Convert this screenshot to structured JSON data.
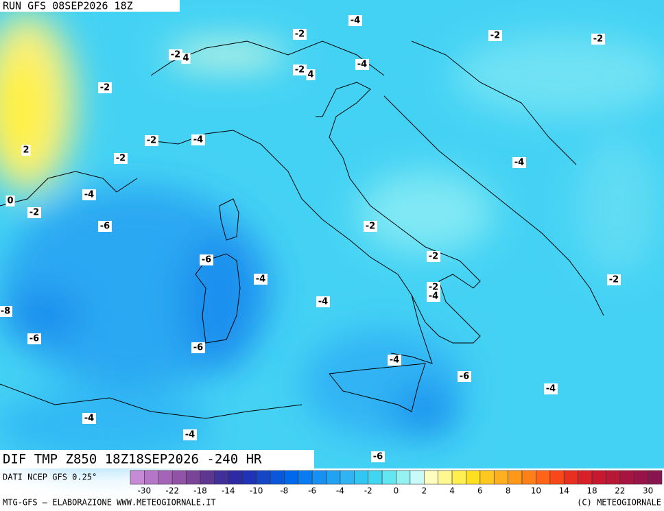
{
  "header": {
    "run": "RUN GFS 08SEP2026 18Z"
  },
  "contour_labels": [
    "-4",
    "-2",
    "-2",
    "-2",
    "-2",
    "4",
    "-2",
    "4",
    "-4",
    "-2",
    "-2",
    "-4",
    "-2",
    "2",
    "-4",
    "-4",
    "0",
    "-2",
    "-6",
    "-2",
    "-6",
    "-2",
    "-4",
    "-2",
    "-2",
    "-4",
    "-4",
    "-8",
    "-6",
    "-6",
    "-4",
    "-6",
    "-4",
    "-4",
    "-4",
    "-6"
  ],
  "footer": {
    "field": "DIF TMP Z850 18Z18SEP2026 -240 HR",
    "source": "DATI NCEP GFS 0.25°",
    "credit": "MTG-GFS – ELABORAZIONE WWW.METEOGIORNALE.IT",
    "copyright": "(C) METEOGIORNALE"
  },
  "colorbar": {
    "colors": [
      "#c68ad6",
      "#b676c8",
      "#a564b8",
      "#9252a8",
      "#7a4598",
      "#5e3690",
      "#42309a",
      "#2e2aa4",
      "#1e34b4",
      "#1446c6",
      "#0a58da",
      "#0068ea",
      "#0a7cf2",
      "#1890f2",
      "#22a2f2",
      "#2eb4f2",
      "#32c6f2",
      "#40d6f2",
      "#62e6f2",
      "#96f2f2",
      "#c8fafa",
      "#fffcc0",
      "#fff890",
      "#fff050",
      "#ffe020",
      "#ffc820",
      "#ffb020",
      "#ff9818",
      "#ff8018",
      "#ff6418",
      "#f84818",
      "#e83020",
      "#d82028",
      "#c81830",
      "#b81838",
      "#a81440",
      "#981448",
      "#881450"
    ],
    "ticks": [
      -30,
      -22,
      -18,
      -14,
      -10,
      -8,
      -6,
      -4,
      -2,
      0,
      2,
      4,
      6,
      8,
      10,
      14,
      18,
      22,
      30
    ]
  }
}
